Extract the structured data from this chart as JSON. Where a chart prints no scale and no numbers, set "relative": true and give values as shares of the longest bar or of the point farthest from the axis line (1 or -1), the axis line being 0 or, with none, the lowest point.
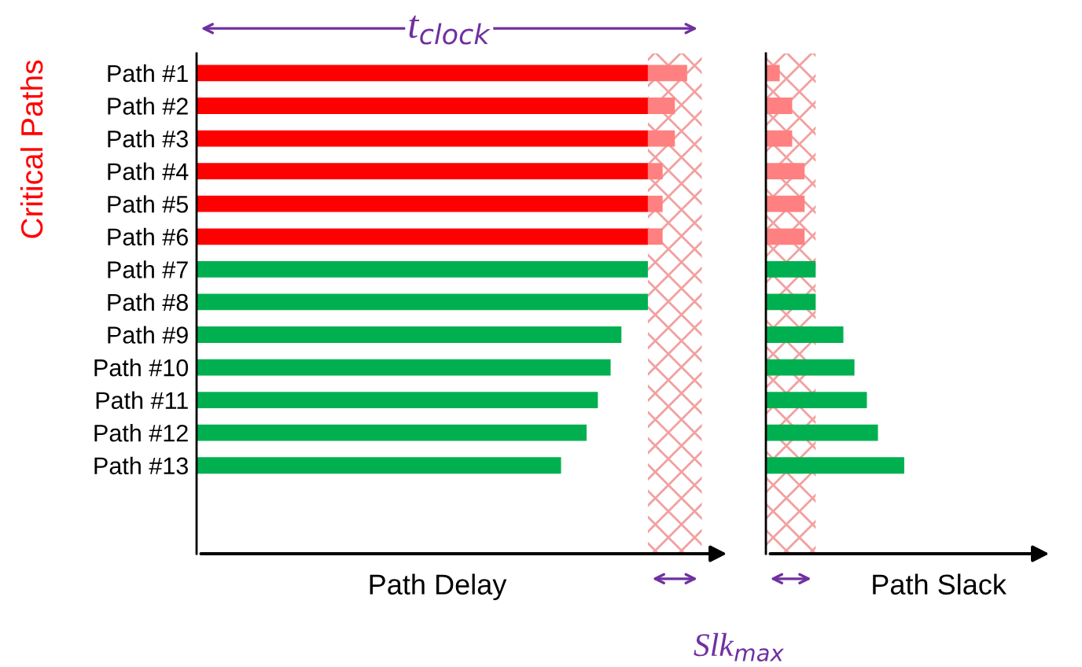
{
  "chart_data": [
    {
      "type": "bar",
      "orientation": "horizontal",
      "stacked": true,
      "relative": true,
      "xlabel": "Path Delay",
      "tick_labels": "y",
      "categories": [
        "Path #1",
        "Path #2",
        "Path #3",
        "Path #4",
        "Path #5",
        "Path #6",
        "Path #7",
        "Path #8",
        "Path #9",
        "Path #10",
        "Path #11",
        "Path #12",
        "Path #13"
      ],
      "series": [
        {
          "color": "#ff0000",
          "values": [
            0.92,
            0.92,
            0.92,
            0.92,
            0.92,
            0.92,
            null,
            null,
            null,
            null,
            null,
            null,
            null
          ]
        },
        {
          "color": "#00b050",
          "values": [
            null,
            null,
            null,
            null,
            null,
            null,
            0.92,
            0.92,
            0.866,
            0.844,
            0.818,
            0.795,
            0.743
          ]
        },
        {
          "color": "#ff8080",
          "values": [
            0.08,
            0.055,
            0.055,
            0.03,
            0.03,
            0.03,
            null,
            null,
            null,
            null,
            null,
            null,
            null
          ]
        }
      ],
      "bands": [
        {
          "axis": "x",
          "from": 0.92,
          "to": 1.03,
          "color": "#f2a0a0"
        }
      ],
      "annotations": [
        "t$_{clock}$",
        "Critical Paths",
        "Slk$_{max}$"
      ]
    },
    {
      "type": "bar",
      "orientation": "horizontal",
      "relative": true,
      "xlabel": "Path Slack",
      "tick_labels": false,
      "categories": [
        null,
        null,
        null,
        null,
        null,
        null,
        null,
        null,
        null,
        null,
        null,
        null,
        null
      ],
      "series": [
        {
          "color": "#ff8080",
          "values": [
            0.1,
            0.19,
            0.19,
            0.28,
            0.28,
            0.28,
            null,
            null,
            null,
            null,
            null,
            null,
            null
          ]
        },
        {
          "color": "#00b050",
          "values": [
            null,
            null,
            null,
            null,
            null,
            null,
            0.36,
            0.36,
            0.56,
            0.64,
            0.73,
            0.81,
            1.0
          ]
        }
      ],
      "bands": [
        {
          "axis": "x",
          "from": 0,
          "to": 0.36,
          "color": "#f2a0a0"
        }
      ]
    }
  ]
}
